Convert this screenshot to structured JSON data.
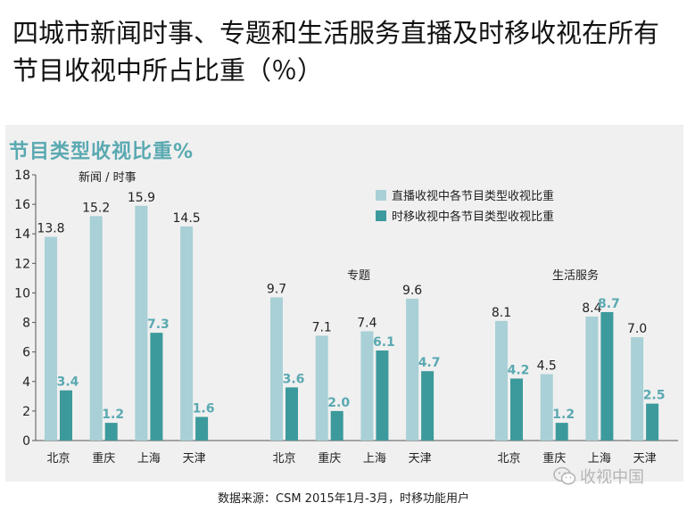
{
  "slide_title": "四城市新闻时事、专题和生活服务直播及时移收视在所有节目收视中所占比重（％）",
  "chart_data": {
    "type": "bar",
    "title": "节目类型收视比重%",
    "xlabel": "",
    "ylabel": "",
    "ylim": [
      0,
      18
    ],
    "yticks": [
      0,
      2,
      4,
      6,
      8,
      10,
      12,
      14,
      16,
      18
    ],
    "grid": false,
    "legend_position": "top-right",
    "colors": {
      "live": "#a8d0d6",
      "timeshift": "#3d9a9c",
      "label": "#5aa9b1"
    },
    "groups": [
      {
        "name": "新闻 / 时事",
        "categories": [
          "北京",
          "重庆",
          "上海",
          "天津"
        ],
        "series": [
          {
            "name": "直播收视中各节目类型收视比重",
            "values": [
              13.8,
              15.2,
              15.9,
              14.5
            ]
          },
          {
            "name": "时移收视中各节目类型收视比重",
            "values": [
              3.4,
              1.2,
              7.3,
              1.6
            ]
          }
        ]
      },
      {
        "name": "专题",
        "categories": [
          "北京",
          "重庆",
          "上海",
          "天津"
        ],
        "series": [
          {
            "name": "直播收视中各节目类型收视比重",
            "values": [
              9.7,
              7.1,
              7.4,
              9.6
            ]
          },
          {
            "name": "时移收视中各节目类型收视比重",
            "values": [
              3.6,
              2.0,
              6.1,
              4.7
            ]
          }
        ]
      },
      {
        "name": "生活服务",
        "categories": [
          "北京",
          "重庆",
          "上海",
          "天津"
        ],
        "series": [
          {
            "name": "直播收视中各节目类型收视比重",
            "values": [
              8.1,
              4.5,
              8.4,
              7.0
            ]
          },
          {
            "name": "时移收视中各节目类型收视比重",
            "values": [
              4.2,
              1.2,
              8.7,
              2.5
            ]
          }
        ]
      }
    ],
    "legend": [
      "直播收视中各节目类型收视比重",
      "时移收视中各节目类型收视比重"
    ]
  },
  "source": "数据来源：CSM 2015年1月-3月，时移功能用户",
  "watermark": "收视中国",
  "icons": [
    "wechat-icon"
  ]
}
